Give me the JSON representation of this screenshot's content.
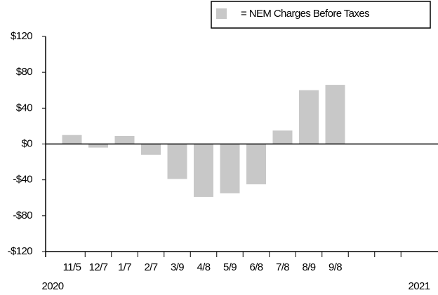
{
  "chart_data": {
    "type": "bar",
    "categories": [
      "11/5",
      "12/7",
      "1/7",
      "2/7",
      "3/9",
      "4/8",
      "5/9",
      "6/8",
      "7/8",
      "8/9",
      "9/8",
      null,
      null
    ],
    "series": [
      {
        "name": "= NEM Charges Before Taxes",
        "color": "#c8c8c8",
        "values": [
          10,
          -4,
          9,
          -12,
          -39,
          -59,
          -55,
          -45,
          15,
          60,
          66,
          null,
          null
        ]
      }
    ],
    "ylim": [
      -120,
      120
    ],
    "yticks": [
      {
        "value": -120,
        "label": "-$120"
      },
      {
        "value": -80,
        "label": "-$80"
      },
      {
        "value": -40,
        "label": "-$40"
      },
      {
        "value": 0,
        "label": "$0"
      },
      {
        "value": 40,
        "label": "$40"
      },
      {
        "value": 80,
        "label": "$80"
      },
      {
        "value": 120,
        "label": "$120"
      }
    ],
    "annotations": [
      "2020",
      "2021"
    ],
    "legend": "top-right"
  }
}
